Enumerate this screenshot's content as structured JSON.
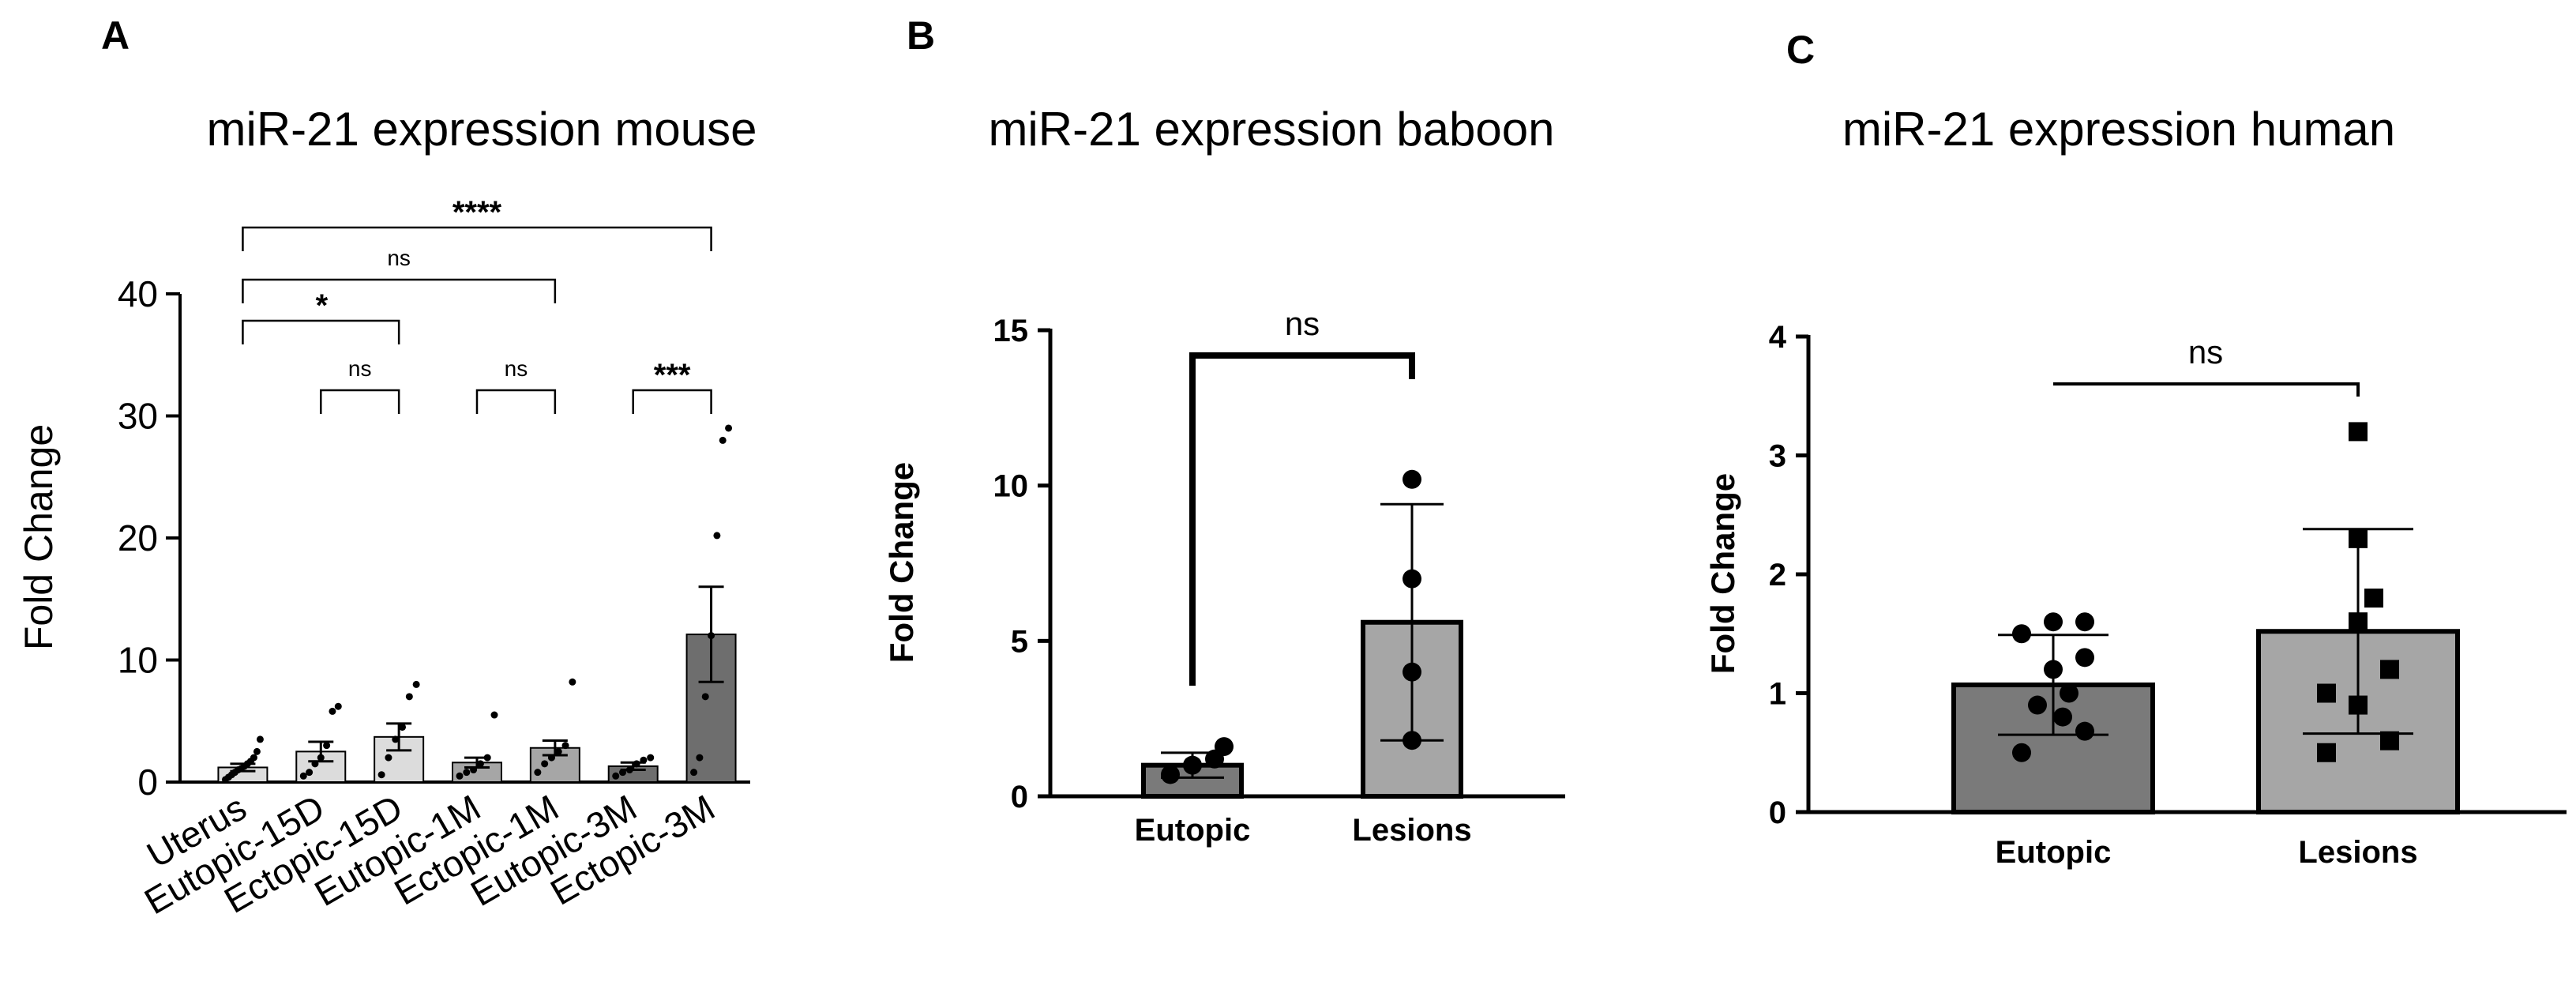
{
  "chart_data": [
    {
      "panel": "A",
      "type": "bar",
      "title": "miR-21 expression mouse",
      "xlabel": "",
      "ylabel": "Fold Change",
      "ylim": [
        0,
        40
      ],
      "yticks": [
        0,
        10,
        20,
        30,
        40
      ],
      "categories": [
        "Uterus",
        "Eutopic-15D",
        "Ectopic-15D",
        "Eutopic-1M",
        "Ectopic-1M",
        "Eutopic-3M",
        "Ectopic-3M"
      ],
      "values": [
        1.2,
        2.5,
        3.7,
        1.6,
        2.8,
        1.3,
        12.1
      ],
      "error": [
        0.3,
        0.8,
        1.1,
        0.4,
        0.6,
        0.3,
        3.9
      ],
      "bar_colors": [
        "#dcdcdc",
        "#dcdcdc",
        "#dcdcdc",
        "#a6a6a6",
        "#a6a6a6",
        "#6e6e6e",
        "#6e6e6e"
      ],
      "points": [
        [
          0.2,
          0.4,
          0.6,
          0.8,
          1.0,
          1.1,
          1.3,
          1.5,
          1.7,
          2.0,
          2.5,
          3.5
        ],
        [
          0.5,
          0.8,
          1.5,
          2.0,
          3.0,
          5.8,
          6.2
        ],
        [
          0.6,
          2.0,
          3.5,
          4.5,
          7.0,
          8.0
        ],
        [
          0.5,
          0.8,
          1.0,
          1.5,
          2.0,
          5.5
        ],
        [
          0.8,
          1.5,
          2.0,
          2.5,
          3.0,
          8.2
        ],
        [
          0.5,
          0.8,
          1.0,
          1.5,
          1.8,
          2.0
        ],
        [
          0.8,
          2.0,
          7.0,
          12.0,
          20.2,
          28.0,
          29.0
        ]
      ],
      "comparisons": [
        {
          "from": 0,
          "to": 6,
          "label": "****"
        },
        {
          "from": 0,
          "to": 4,
          "label": "ns"
        },
        {
          "from": 0,
          "to": 2,
          "label": "*"
        },
        {
          "from": 1,
          "to": 2,
          "label": "ns"
        },
        {
          "from": 3,
          "to": 4,
          "label": "ns"
        },
        {
          "from": 5,
          "to": 6,
          "label": "***"
        }
      ]
    },
    {
      "panel": "B",
      "type": "bar",
      "title": "miR-21 expression baboon",
      "xlabel": "",
      "ylabel": "Fold Change",
      "ylim": [
        0,
        15
      ],
      "yticks": [
        0,
        5,
        10,
        15
      ],
      "categories": [
        "Eutopic",
        "Lesions"
      ],
      "values": [
        1.0,
        5.6
      ],
      "error": [
        0.4,
        3.8
      ],
      "bar_colors": [
        "#7a7a7a",
        "#a6a6a6"
      ],
      "points": [
        [
          0.7,
          1.0,
          1.2,
          1.6
        ],
        [
          1.8,
          4.0,
          7.0,
          10.2
        ]
      ],
      "comparisons": [
        {
          "from": 0,
          "to": 1,
          "label": "ns"
        }
      ]
    },
    {
      "panel": "C",
      "type": "bar",
      "title": "miR-21 expression human",
      "xlabel": "",
      "ylabel": "Fold Change",
      "ylim": [
        0,
        4
      ],
      "yticks": [
        0,
        1,
        2,
        3,
        4
      ],
      "categories": [
        "Eutopic",
        "Lesions"
      ],
      "values": [
        1.07,
        1.52
      ],
      "error": [
        0.42,
        0.86
      ],
      "bar_colors": [
        "#7a7a7a",
        "#a6a6a6"
      ],
      "points": [
        [
          0.5,
          0.68,
          0.8,
          0.9,
          1.0,
          1.2,
          1.3,
          1.5,
          1.6,
          1.6
        ],
        [
          0.5,
          0.6,
          0.9,
          1.0,
          1.2,
          1.6,
          1.8,
          2.3,
          3.2
        ]
      ],
      "comparisons": [
        {
          "from": 0,
          "to": 1,
          "label": "ns"
        }
      ]
    }
  ]
}
